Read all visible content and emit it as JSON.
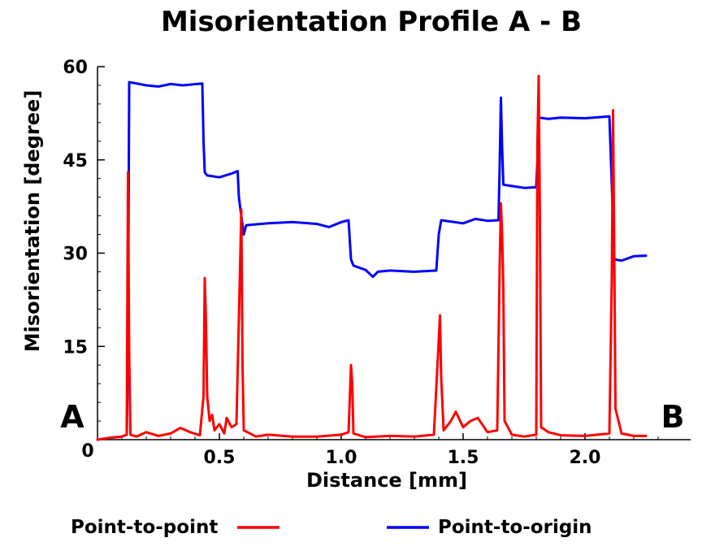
{
  "chart_data": {
    "type": "line",
    "title": "Misorientation Profile A - B",
    "xlabel": "Distance [mm]",
    "ylabel": "Misorientation [degree]",
    "xlim": [
      0,
      2.4
    ],
    "ylim": [
      0,
      60
    ],
    "x_ticks": [
      0.5,
      1.0,
      1.5,
      2.0
    ],
    "x_tick_labels": [
      "0.5",
      "1.0",
      "1.5",
      "2.0"
    ],
    "y_ticks": [
      15,
      30,
      45,
      60
    ],
    "y_tick_labels": [
      "15",
      "30",
      "45",
      "60"
    ],
    "origin_label": "0",
    "start_label": "A",
    "end_label": "B",
    "grid": false,
    "legend_position": "bottom",
    "series": [
      {
        "name": "Point-to-point",
        "color": "#ff0000",
        "points": [
          [
            0,
            0
          ],
          [
            0.05,
            0.3
          ],
          [
            0.1,
            0.5
          ],
          [
            0.12,
            0.8
          ],
          [
            0.125,
            43
          ],
          [
            0.13,
            14
          ],
          [
            0.135,
            0.8
          ],
          [
            0.16,
            0.5
          ],
          [
            0.2,
            1.2
          ],
          [
            0.25,
            0.6
          ],
          [
            0.3,
            1.0
          ],
          [
            0.34,
            1.9
          ],
          [
            0.38,
            1.2
          ],
          [
            0.42,
            0.7
          ],
          [
            0.435,
            7
          ],
          [
            0.44,
            26
          ],
          [
            0.445,
            19
          ],
          [
            0.45,
            7
          ],
          [
            0.46,
            3
          ],
          [
            0.47,
            4
          ],
          [
            0.48,
            1.5
          ],
          [
            0.5,
            2.5
          ],
          [
            0.52,
            1
          ],
          [
            0.53,
            3.5
          ],
          [
            0.55,
            2
          ],
          [
            0.57,
            2.5
          ],
          [
            0.585,
            28
          ],
          [
            0.59,
            37
          ],
          [
            0.595,
            12
          ],
          [
            0.6,
            1.5
          ],
          [
            0.65,
            0.5
          ],
          [
            0.7,
            0.8
          ],
          [
            0.8,
            0.5
          ],
          [
            0.9,
            0.5
          ],
          [
            1.0,
            0.8
          ],
          [
            1.03,
            1.2
          ],
          [
            1.04,
            12
          ],
          [
            1.045,
            9
          ],
          [
            1.05,
            1
          ],
          [
            1.1,
            0.4
          ],
          [
            1.2,
            0.6
          ],
          [
            1.3,
            0.5
          ],
          [
            1.38,
            0.8
          ],
          [
            1.4,
            16
          ],
          [
            1.405,
            20
          ],
          [
            1.41,
            10
          ],
          [
            1.42,
            1.5
          ],
          [
            1.45,
            3
          ],
          [
            1.47,
            4.5
          ],
          [
            1.5,
            2
          ],
          [
            1.53,
            3
          ],
          [
            1.56,
            3.5
          ],
          [
            1.6,
            1.2
          ],
          [
            1.64,
            1.5
          ],
          [
            1.65,
            28
          ],
          [
            1.655,
            38
          ],
          [
            1.66,
            33
          ],
          [
            1.665,
            24
          ],
          [
            1.67,
            3
          ],
          [
            1.7,
            0.8
          ],
          [
            1.75,
            0.5
          ],
          [
            1.8,
            0.8
          ],
          [
            1.805,
            48
          ],
          [
            1.81,
            58.5
          ],
          [
            1.815,
            35
          ],
          [
            1.82,
            2
          ],
          [
            1.85,
            1.2
          ],
          [
            1.9,
            0.7
          ],
          [
            2.0,
            0.6
          ],
          [
            2.05,
            0.8
          ],
          [
            2.1,
            1
          ],
          [
            2.11,
            26
          ],
          [
            2.115,
            53
          ],
          [
            2.12,
            30
          ],
          [
            2.125,
            5
          ],
          [
            2.15,
            1
          ],
          [
            2.2,
            0.6
          ],
          [
            2.25,
            0.6
          ]
        ]
      },
      {
        "name": "Point-to-origin",
        "color": "#0000ff",
        "points": [
          [
            0,
            0
          ],
          [
            0.05,
            0.3
          ],
          [
            0.1,
            0.5
          ],
          [
            0.12,
            0.8
          ],
          [
            0.125,
            14
          ],
          [
            0.13,
            57.5
          ],
          [
            0.16,
            57.3
          ],
          [
            0.2,
            57
          ],
          [
            0.25,
            56.8
          ],
          [
            0.3,
            57.2
          ],
          [
            0.35,
            57
          ],
          [
            0.43,
            57.3
          ],
          [
            0.435,
            48
          ],
          [
            0.44,
            43
          ],
          [
            0.45,
            42.5
          ],
          [
            0.5,
            42.2
          ],
          [
            0.55,
            42.8
          ],
          [
            0.575,
            43.2
          ],
          [
            0.58,
            39
          ],
          [
            0.59,
            36
          ],
          [
            0.6,
            33
          ],
          [
            0.61,
            34.5
          ],
          [
            0.7,
            34.8
          ],
          [
            0.8,
            35
          ],
          [
            0.9,
            34.7
          ],
          [
            0.95,
            34.2
          ],
          [
            1.0,
            35
          ],
          [
            1.03,
            35.3
          ],
          [
            1.04,
            29
          ],
          [
            1.05,
            28
          ],
          [
            1.1,
            27.3
          ],
          [
            1.13,
            26.2
          ],
          [
            1.15,
            27
          ],
          [
            1.2,
            27.2
          ],
          [
            1.3,
            27
          ],
          [
            1.39,
            27.2
          ],
          [
            1.4,
            33
          ],
          [
            1.41,
            35.3
          ],
          [
            1.5,
            34.8
          ],
          [
            1.55,
            35.5
          ],
          [
            1.6,
            35.2
          ],
          [
            1.645,
            35.3
          ],
          [
            1.65,
            44
          ],
          [
            1.655,
            55
          ],
          [
            1.66,
            47
          ],
          [
            1.665,
            41
          ],
          [
            1.7,
            40.8
          ],
          [
            1.75,
            40.5
          ],
          [
            1.8,
            40.6
          ],
          [
            1.805,
            45
          ],
          [
            1.81,
            51.8
          ],
          [
            1.85,
            51.6
          ],
          [
            1.9,
            51.8
          ],
          [
            2.0,
            51.7
          ],
          [
            2.1,
            52
          ],
          [
            2.11,
            41
          ],
          [
            2.12,
            29
          ],
          [
            2.15,
            28.8
          ],
          [
            2.2,
            29.5
          ],
          [
            2.25,
            29.6
          ]
        ]
      }
    ]
  }
}
